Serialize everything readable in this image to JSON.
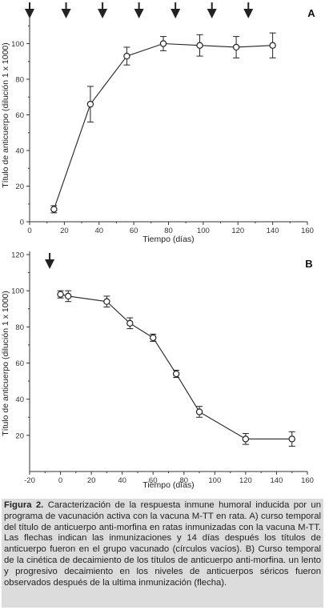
{
  "chart_data": [
    {
      "type": "line",
      "panel_label": "A",
      "xlabel": "Tiempo (días)",
      "ylabel": "Título de anticuerpo (dilución 1 x 1000)",
      "xlim": [
        0,
        160
      ],
      "ylim": [
        0,
        120
      ],
      "xticks": [
        "0",
        "20",
        "40",
        "60",
        "80",
        "100",
        "120",
        "140",
        "160"
      ],
      "yticks": [
        "0",
        "20",
        "40",
        "60",
        "80",
        "100"
      ],
      "x": [
        14,
        35,
        56,
        77,
        98,
        119,
        140
      ],
      "y": [
        7,
        66,
        93,
        100,
        99,
        98,
        99
      ],
      "error": [
        2,
        10,
        5,
        4,
        6,
        6,
        7
      ],
      "marker": "open-circle",
      "arrows_x": [
        0,
        21,
        42,
        63,
        84,
        105,
        126
      ],
      "grid": false
    },
    {
      "type": "line",
      "panel_label": "B",
      "xlabel": "Tiempo (días)",
      "ylabel": "Título de anticuerpo (dilución 1 x 1000)",
      "xlim": [
        -20,
        160
      ],
      "ylim": [
        0,
        120
      ],
      "xticks": [
        "-20",
        "0",
        "20",
        "40",
        "60",
        "80",
        "100",
        "120",
        "140",
        "160"
      ],
      "yticks": [
        "20",
        "40",
        "60",
        "80",
        "100",
        "120"
      ],
      "x": [
        0,
        5,
        30,
        45,
        60,
        75,
        90,
        120,
        150
      ],
      "y": [
        98,
        97,
        94,
        82,
        74,
        54,
        33,
        18,
        18
      ],
      "error": [
        2,
        3,
        3,
        3,
        2,
        2,
        3,
        3,
        4
      ],
      "marker": "open-circle",
      "arrows_x": [
        -7
      ],
      "grid": false
    }
  ],
  "caption": {
    "label": "Figura 2.",
    "text": " Caracterización de la respuesta inmune humoral inducida por un programa de vacunación activa con la vacuna M-TT en rata. A) curso temporal del título de anticuerpo anti-morfina en ratas inmunizadas con la vacuna M-TT. Las flechas indican las inmunizaciones y 14 días después los títulos de anticuerpo fueron en el grupo vacunado (círculos vacíos). B) Curso temporal de la cinética de decaimiento de los títulos de anticuerpo anti-morfina. un lento y progresivo decaimiento en los niveles de anticuerpos séricos fueron observados después de la ultima inmunización (flecha)."
  }
}
